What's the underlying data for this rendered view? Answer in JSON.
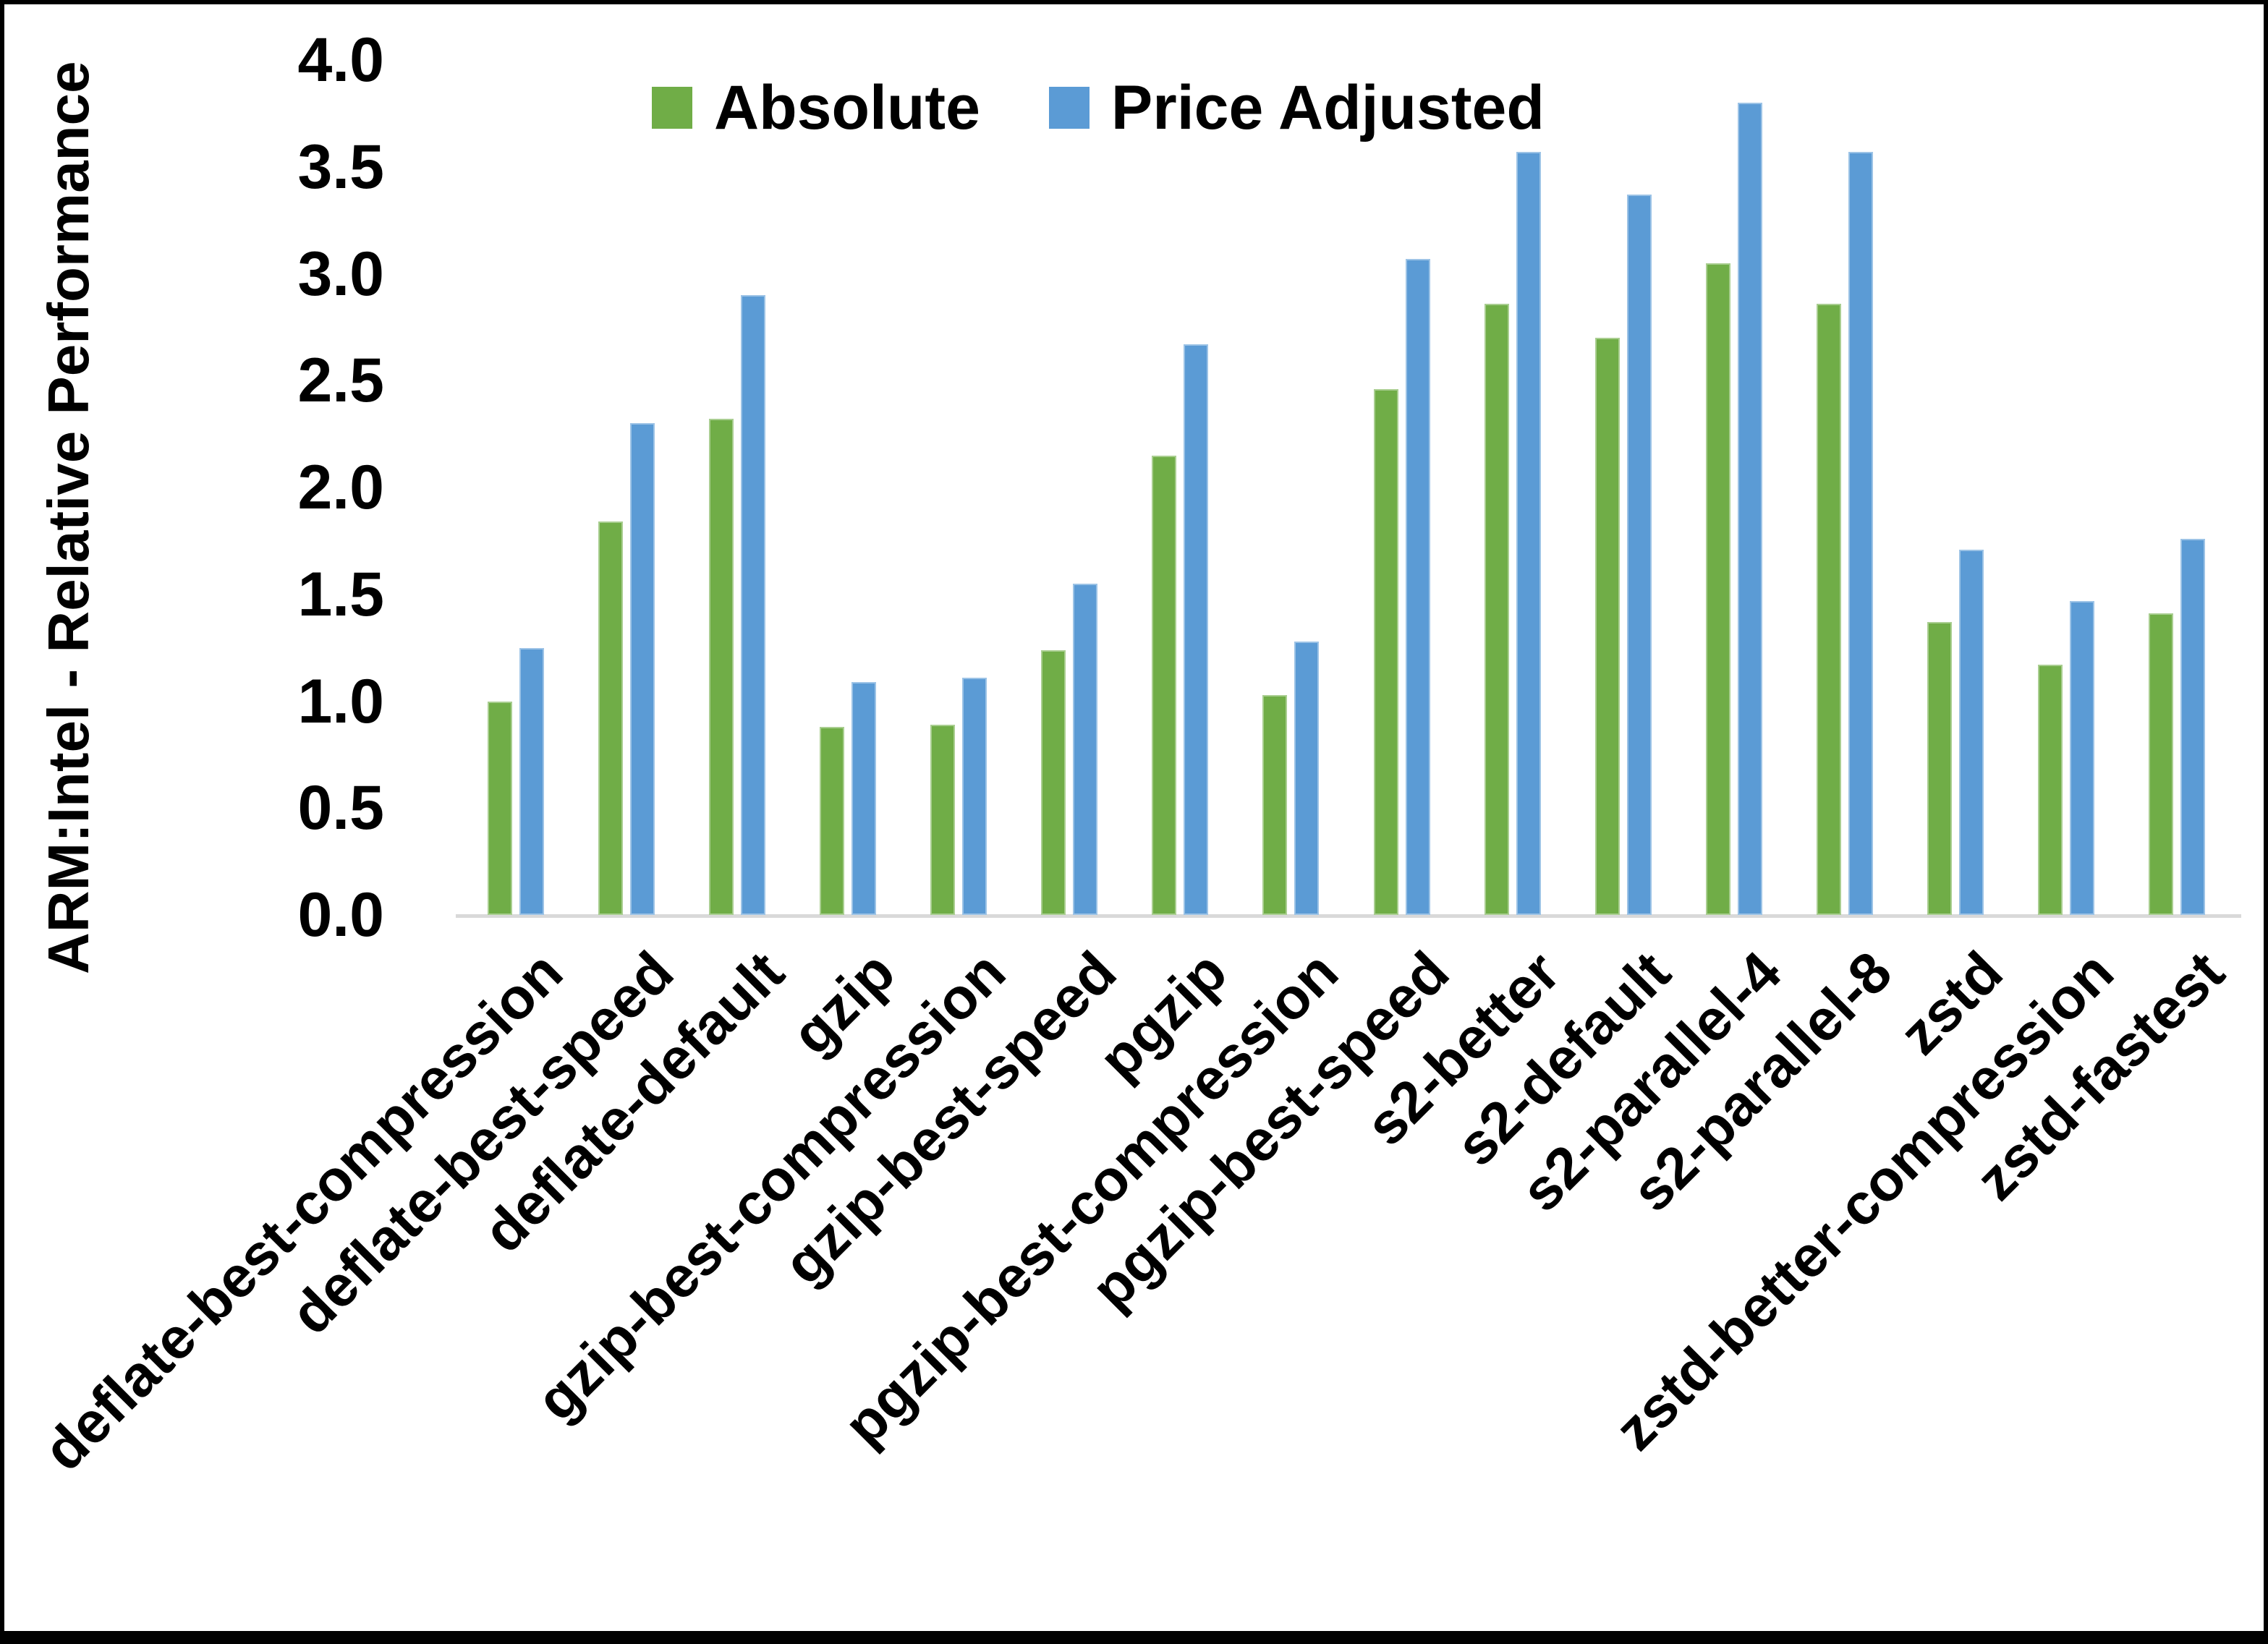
{
  "chart_data": {
    "type": "bar",
    "title": "",
    "ylabel": "ARM:Intel - Relative Performance",
    "xlabel": "",
    "categories": [
      "deflate-best-compression",
      "deflate-best-speed",
      "deflate-default",
      "gzip",
      "gzip-best-compression",
      "gzip-best-speed",
      "pgzip",
      "pgzip-best-compression",
      "pgzip-best-speed",
      "s2-better",
      "s2-default",
      "s2-parallel-4",
      "s2-parallel-8",
      "zstd",
      "zstd-better-compression",
      "zstd-fastest"
    ],
    "series": [
      {
        "name": "Absolute",
        "color": "#70AD47",
        "values": [
          1.0,
          1.84,
          2.32,
          0.88,
          0.89,
          1.24,
          2.15,
          1.03,
          2.46,
          2.86,
          2.7,
          3.05,
          2.86,
          1.37,
          1.17,
          1.41
        ]
      },
      {
        "name": "Price Adjusted",
        "color": "#5B9BD5",
        "values": [
          1.25,
          2.3,
          2.9,
          1.09,
          1.11,
          1.55,
          2.67,
          1.28,
          3.07,
          3.57,
          3.37,
          3.8,
          3.57,
          1.71,
          1.47,
          1.76
        ]
      }
    ],
    "ylim": [
      0.0,
      4.0
    ],
    "yticks": [
      "0.0",
      "0.5",
      "1.0",
      "1.5",
      "2.0",
      "2.5",
      "3.0",
      "3.5",
      "4.0"
    ],
    "grid": false,
    "legend_position": "top-center",
    "axis_line_color": "#D9D9D9"
  }
}
